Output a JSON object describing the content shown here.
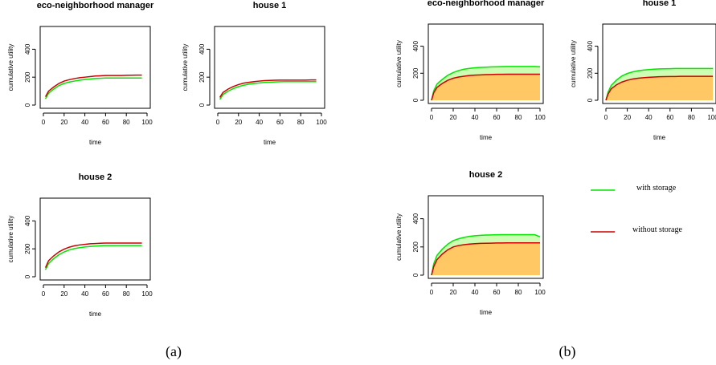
{
  "legend": {
    "items": [
      {
        "label": "with storage",
        "color": "#00e600"
      },
      {
        "label": "without storage",
        "color": "#cc0000"
      }
    ]
  },
  "colors": {
    "with_storage": "#00e600",
    "without_storage": "#cc0000",
    "area_total": "#ffc864",
    "area_gain": "#ccffb3"
  },
  "chart_data": [
    {
      "type": "line",
      "panel": "a",
      "title": "eco-neighborhood manager",
      "xlabel": "time",
      "ylabel": "cumulative utility",
      "xlim": [
        0,
        100
      ],
      "ylim": [
        0,
        500
      ],
      "xticks": [
        "0",
        "20",
        "40",
        "60",
        "80",
        "100"
      ],
      "yticks": [
        "0",
        "200",
        "400"
      ],
      "x": [
        2,
        5,
        10,
        15,
        20,
        25,
        30,
        35,
        40,
        45,
        50,
        55,
        60,
        65,
        70,
        75,
        80,
        85,
        90,
        95
      ],
      "series": [
        {
          "name": "with storage",
          "values": [
            45,
            85,
            115,
            140,
            155,
            165,
            172,
            178,
            183,
            187,
            190,
            192,
            194,
            194,
            194,
            194,
            194,
            194,
            194,
            194
          ]
        },
        {
          "name": "without storage",
          "values": [
            60,
            100,
            130,
            155,
            172,
            182,
            190,
            196,
            200,
            204,
            208,
            210,
            212,
            212,
            212,
            212,
            213,
            214,
            215,
            215
          ]
        }
      ]
    },
    {
      "type": "line",
      "panel": "a",
      "title": "house 1",
      "xlabel": "time",
      "ylabel": "cumulative utility",
      "xlim": [
        0,
        100
      ],
      "ylim": [
        0,
        500
      ],
      "xticks": [
        "0",
        "20",
        "40",
        "60",
        "80",
        "100"
      ],
      "yticks": [
        "0",
        "200",
        "400"
      ],
      "x": [
        2,
        5,
        10,
        15,
        20,
        25,
        30,
        35,
        40,
        45,
        50,
        55,
        60,
        65,
        70,
        75,
        80,
        85,
        90,
        95
      ],
      "series": [
        {
          "name": "with storage",
          "values": [
            40,
            75,
            100,
            118,
            132,
            142,
            150,
            155,
            159,
            162,
            164,
            166,
            167,
            168,
            168,
            168,
            168,
            168,
            168,
            168
          ]
        },
        {
          "name": "without storage",
          "values": [
            55,
            90,
            115,
            133,
            147,
            157,
            163,
            168,
            172,
            175,
            177,
            178,
            179,
            179,
            179,
            179,
            179,
            179,
            180,
            180
          ]
        }
      ]
    },
    {
      "type": "line",
      "panel": "a",
      "title": "house 2",
      "xlabel": "time",
      "ylabel": "cumulative utility",
      "xlim": [
        0,
        100
      ],
      "ylim": [
        0,
        500
      ],
      "xticks": [
        "0",
        "20",
        "40",
        "60",
        "80",
        "100"
      ],
      "yticks": [
        "0",
        "200",
        "400"
      ],
      "x": [
        2,
        5,
        10,
        15,
        20,
        25,
        30,
        35,
        40,
        45,
        50,
        55,
        60,
        65,
        70,
        75,
        80,
        85,
        90,
        95
      ],
      "series": [
        {
          "name": "with storage",
          "values": [
            50,
            95,
            130,
            158,
            178,
            192,
            202,
            208,
            213,
            217,
            220,
            222,
            223,
            223,
            223,
            223,
            223,
            223,
            223,
            223
          ]
        },
        {
          "name": "without storage",
          "values": [
            65,
            115,
            150,
            178,
            198,
            212,
            222,
            228,
            232,
            236,
            238,
            240,
            241,
            241,
            241,
            241,
            241,
            241,
            241,
            241
          ]
        }
      ]
    },
    {
      "type": "area",
      "panel": "b",
      "title": "eco-neighborhood manager",
      "xlabel": "time",
      "ylabel": "cumulative utility",
      "xlim": [
        0,
        100
      ],
      "ylim": [
        0,
        500
      ],
      "xticks": [
        "0",
        "20",
        "40",
        "60",
        "80",
        "100"
      ],
      "yticks": [
        "0",
        "200",
        "400"
      ],
      "x": [
        0,
        2,
        5,
        10,
        15,
        20,
        25,
        30,
        35,
        40,
        45,
        50,
        55,
        60,
        65,
        70,
        75,
        80,
        85,
        90,
        95,
        100
      ],
      "series": [
        {
          "name": "with storage",
          "values": [
            0,
            70,
            120,
            155,
            185,
            205,
            220,
            230,
            236,
            240,
            243,
            245,
            247,
            248,
            249,
            250,
            250,
            250,
            250,
            250,
            250,
            248
          ]
        },
        {
          "name": "without storage",
          "values": [
            0,
            55,
            95,
            125,
            148,
            163,
            172,
            178,
            183,
            186,
            188,
            190,
            191,
            192,
            192,
            193,
            193,
            193,
            193,
            193,
            193,
            193
          ]
        }
      ]
    },
    {
      "type": "area",
      "panel": "b",
      "title": "house 1",
      "xlabel": "time",
      "ylabel": "cumulative utility",
      "xlim": [
        0,
        100
      ],
      "ylim": [
        0,
        500
      ],
      "xticks": [
        "0",
        "20",
        "40",
        "60",
        "80",
        "100"
      ],
      "yticks": [
        "0",
        "200",
        "400"
      ],
      "x": [
        0,
        2,
        5,
        10,
        15,
        20,
        25,
        30,
        35,
        40,
        45,
        50,
        55,
        60,
        65,
        70,
        75,
        80,
        85,
        90,
        95,
        100
      ],
      "series": [
        {
          "name": "with storage",
          "values": [
            0,
            60,
            110,
            150,
            180,
            198,
            210,
            218,
            223,
            227,
            230,
            232,
            233,
            234,
            235,
            235,
            235,
            235,
            235,
            235,
            235,
            235
          ]
        },
        {
          "name": "without storage",
          "values": [
            0,
            45,
            85,
            115,
            135,
            148,
            157,
            163,
            167,
            170,
            172,
            174,
            175,
            176,
            176,
            177,
            177,
            177,
            177,
            177,
            177,
            177
          ]
        }
      ]
    },
    {
      "type": "area",
      "panel": "b",
      "title": "house 2",
      "xlabel": "time",
      "ylabel": "cumulative utility",
      "xlim": [
        0,
        100
      ],
      "ylim": [
        0,
        500
      ],
      "xticks": [
        "0",
        "20",
        "40",
        "60",
        "80",
        "100"
      ],
      "yticks": [
        "0",
        "200",
        "400"
      ],
      "x": [
        0,
        2,
        5,
        10,
        15,
        20,
        25,
        30,
        35,
        40,
        45,
        50,
        55,
        60,
        65,
        70,
        75,
        80,
        85,
        90,
        95,
        100
      ],
      "series": [
        {
          "name": "with storage",
          "values": [
            0,
            80,
            140,
            185,
            220,
            245,
            258,
            268,
            275,
            279,
            282,
            284,
            285,
            286,
            287,
            287,
            287,
            287,
            287,
            287,
            287,
            272
          ]
        },
        {
          "name": "without storage",
          "values": [
            0,
            60,
            110,
            150,
            180,
            200,
            210,
            216,
            220,
            223,
            225,
            226,
            227,
            228,
            228,
            229,
            229,
            229,
            229,
            229,
            229,
            229
          ]
        }
      ]
    }
  ],
  "captions": {
    "a": "(a)",
    "b": "(b)"
  }
}
